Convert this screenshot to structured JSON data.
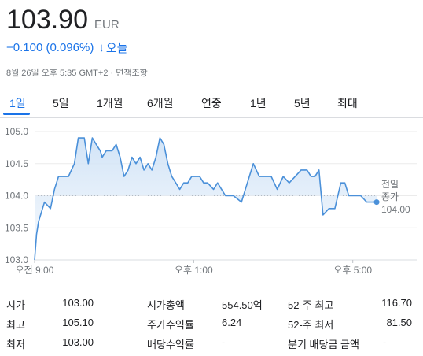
{
  "quote": {
    "price": "103.90",
    "currency": "EUR",
    "change": "−0.100 (0.096%)",
    "change_arrow": "↓",
    "change_period": "오늘",
    "meta": "8월 26일 오후 5:35 GMT+2 · 면책조항"
  },
  "tabs": [
    "1일",
    "5일",
    "1개월",
    "6개월",
    "연중",
    "1년",
    "5년",
    "최대"
  ],
  "active_tab": "1일",
  "colors": {
    "accent": "#1a73e8",
    "line": "#4a90d9",
    "fill": "#dbe9f7",
    "text": "#202124",
    "muted": "#70757a"
  },
  "chart_data": {
    "type": "line",
    "y_ticks": [
      "105.0",
      "104.5",
      "104.0",
      "103.5",
      "103.0"
    ],
    "x_ticks": [
      "오전 9:00",
      "오후 1:00",
      "오후 5:00"
    ],
    "ylim": [
      103.0,
      105.0
    ],
    "xlim": [
      9.0,
      17.5
    ],
    "previous_close_label_1": "전일",
    "previous_close_label_2": "종가",
    "previous_close_value": "104.00",
    "previous_close": 104.0,
    "series": [
      {
        "x": [
          9.0,
          9.05,
          9.1,
          9.25,
          9.4,
          9.5,
          9.6,
          9.75,
          9.85,
          10.0,
          10.1,
          10.25,
          10.35,
          10.45,
          10.55,
          10.65,
          10.7,
          10.8,
          10.95,
          11.05,
          11.15,
          11.25,
          11.35,
          11.45,
          11.55,
          11.65,
          11.75,
          11.85,
          11.95,
          12.05,
          12.15,
          12.25,
          12.35,
          12.45,
          12.55,
          12.65,
          12.75,
          12.85,
          12.95,
          13.05,
          13.15,
          13.25,
          13.35,
          13.5,
          13.6,
          13.7,
          13.8,
          14.0,
          14.2,
          14.35,
          14.5,
          14.65,
          14.8,
          14.95,
          15.1,
          15.25,
          15.4,
          15.55,
          15.7,
          15.85,
          15.95,
          16.05,
          16.15,
          16.25,
          16.4,
          16.55,
          16.7,
          16.8,
          16.9,
          17.0,
          17.1,
          17.2,
          17.35,
          17.45,
          17.6
        ],
        "y": [
          103.0,
          103.4,
          103.6,
          103.9,
          103.8,
          104.1,
          104.3,
          104.3,
          104.3,
          104.5,
          104.9,
          104.9,
          104.5,
          104.9,
          104.8,
          104.7,
          104.6,
          104.7,
          104.7,
          104.8,
          104.6,
          104.3,
          104.4,
          104.6,
          104.5,
          104.6,
          104.4,
          104.5,
          104.4,
          104.6,
          104.9,
          104.8,
          104.5,
          104.3,
          104.2,
          104.1,
          104.2,
          104.2,
          104.3,
          104.3,
          104.3,
          104.2,
          104.2,
          104.1,
          104.2,
          104.1,
          104.0,
          104.0,
          103.9,
          104.2,
          104.5,
          104.3,
          104.3,
          104.3,
          104.1,
          104.3,
          104.2,
          104.3,
          104.4,
          104.4,
          104.3,
          104.3,
          104.4,
          103.7,
          103.8,
          103.8,
          104.2,
          104.2,
          104.0,
          104.0,
          104.0,
          104.0,
          103.9,
          103.9,
          103.9
        ]
      }
    ]
  },
  "stats": [
    {
      "label": "시가",
      "value": "103.00"
    },
    {
      "label": "최고",
      "value": "105.10"
    },
    {
      "label": "최저",
      "value": "103.00"
    },
    {
      "label": "시가총액",
      "value": "554.50억"
    },
    {
      "label": "주가수익률",
      "value": "6.24"
    },
    {
      "label": "배당수익률",
      "value": "-"
    },
    {
      "label": "52-주 최고",
      "value": "116.70"
    },
    {
      "label": "52-주 최저",
      "value": "81.50"
    },
    {
      "label": "분기 배당금 금액",
      "value": "-"
    }
  ]
}
